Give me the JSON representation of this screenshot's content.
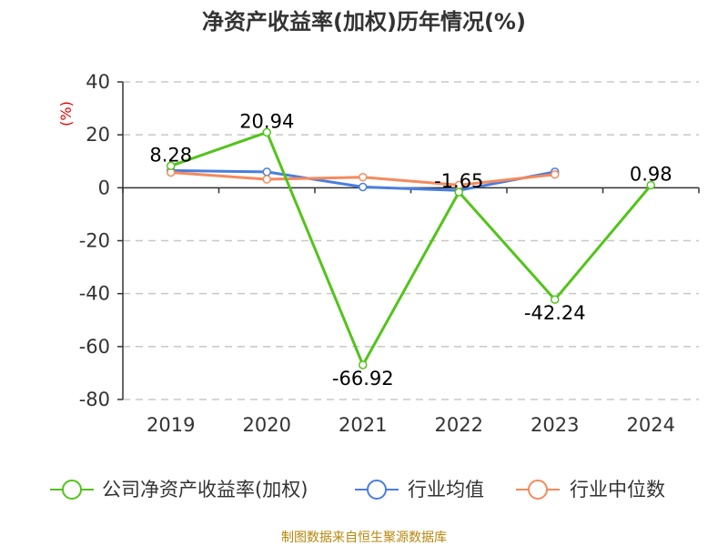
{
  "chart_data": {
    "type": "line",
    "title": "净资产收益率(加权)历年情况(%)",
    "ylabel": "(%)",
    "xlabel": "",
    "categories": [
      "2019",
      "2020",
      "2021",
      "2022",
      "2023",
      "2024"
    ],
    "ylim": [
      -80,
      40
    ],
    "yticks": [
      40,
      20,
      0,
      -20,
      -40,
      -60,
      -80
    ],
    "grid": true,
    "legend_position": "bottom",
    "series": [
      {
        "name": "公司净资产收益率(加权)",
        "color": "#52c41a",
        "values": [
          8.28,
          20.94,
          -66.92,
          -1.65,
          -42.24,
          0.98
        ],
        "labels": [
          "8.28",
          "20.94",
          "-66.92",
          "-1.65",
          "-42.24",
          "0.98"
        ]
      },
      {
        "name": "行业均值",
        "color": "#4a7de0",
        "values": [
          6.5,
          6.0,
          0.3,
          -1.0,
          6.0,
          null
        ]
      },
      {
        "name": "行业中位数",
        "color": "#f58a5c",
        "values": [
          5.8,
          3.2,
          4.0,
          1.0,
          5.0,
          null
        ]
      }
    ],
    "source": "制图数据来自恒生聚源数据库"
  }
}
